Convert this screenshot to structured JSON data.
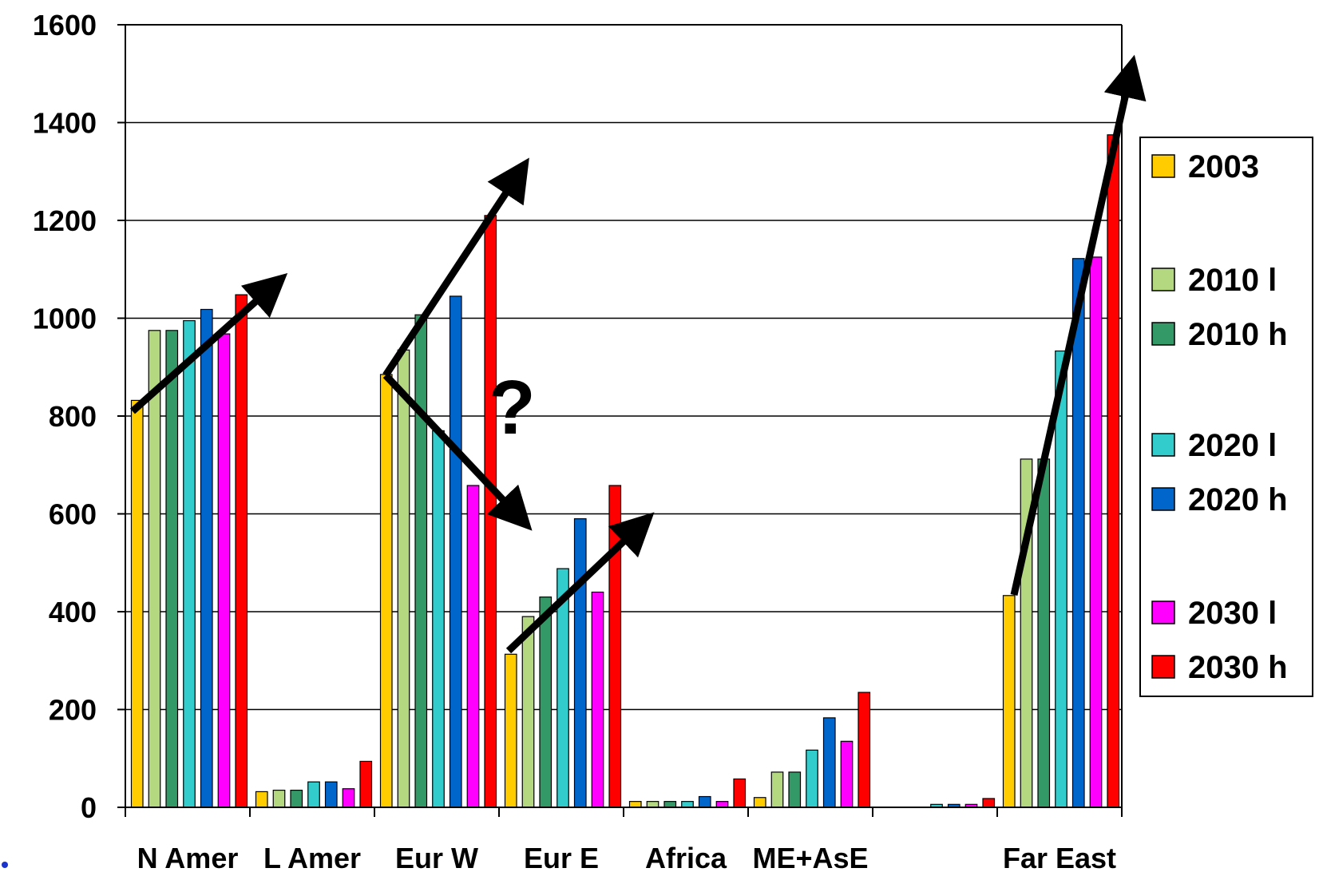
{
  "chart_data": {
    "type": "bar",
    "title": "",
    "xlabel": "",
    "ylabel": "",
    "ylim": [
      0,
      1600
    ],
    "yticks": [
      "0",
      "200",
      "400",
      "600",
      "800",
      "1000",
      "1200",
      "1400",
      "1600"
    ],
    "grid": true,
    "legend_position": "right",
    "categories": [
      "N Amer",
      "L Amer",
      "Eur W",
      "Eur E",
      "Africa",
      "ME+AsE",
      "",
      "Far East"
    ],
    "series": [
      {
        "name": "2003",
        "color": "#FFCC00",
        "values": [
          832,
          32,
          885,
          313,
          12,
          20,
          0,
          433
        ]
      },
      {
        "name": "2010 l",
        "color": "#B3D87F",
        "values": [
          975,
          35,
          935,
          390,
          12,
          72,
          0,
          712
        ]
      },
      {
        "name": "2010 h",
        "color": "#339966",
        "values": [
          975,
          35,
          1007,
          430,
          12,
          72,
          0,
          712
        ]
      },
      {
        "name": "2020 l",
        "color": "#33CCCC",
        "values": [
          995,
          52,
          770,
          488,
          12,
          117,
          6,
          933
        ]
      },
      {
        "name": "2020 h",
        "color": "#0066CC",
        "values": [
          1018,
          52,
          1045,
          590,
          22,
          183,
          6,
          1122
        ]
      },
      {
        "name": "2030 l",
        "color": "#FF00FF",
        "values": [
          968,
          38,
          658,
          440,
          12,
          135,
          6,
          1125
        ]
      },
      {
        "name": "2030 h",
        "color": "#FF0000",
        "values": [
          1048,
          94,
          1210,
          658,
          58,
          235,
          18,
          1375
        ]
      }
    ],
    "annotations": [
      {
        "text": "?"
      }
    ]
  }
}
